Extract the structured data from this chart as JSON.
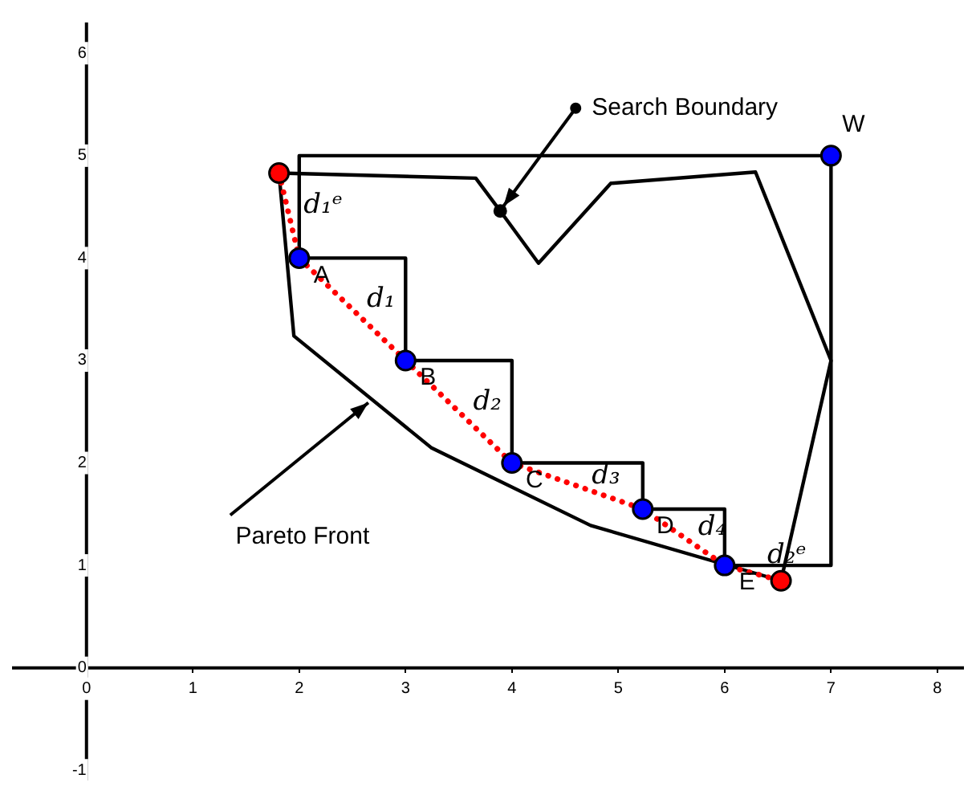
{
  "chart_data": {
    "type": "line",
    "xlim": [
      -0.7,
      8.25
    ],
    "ylim": [
      -1.1,
      6.3
    ],
    "xticks": [
      0,
      1,
      2,
      3,
      4,
      5,
      6,
      7,
      8
    ],
    "yticks": [
      -1,
      0,
      1,
      2,
      3,
      4,
      5,
      6
    ],
    "grid": false,
    "legend": false,
    "series": [
      {
        "color": "#000000",
        "marker": "none",
        "line_style": "solid",
        "x": [
          1.81,
          3.66,
          3.89,
          4.25,
          4.93,
          6.29,
          7,
          6.53
        ],
        "values": [
          4.83,
          4.78,
          4.46,
          3.95,
          4.73,
          4.84,
          3,
          0.85
        ]
      },
      {
        "color": "#000000",
        "marker": "none",
        "line_style": "solid",
        "x": [
          2,
          2,
          7,
          7,
          6
        ],
        "values": [
          4,
          5,
          5,
          1,
          1
        ]
      },
      {
        "color": "#000000",
        "marker": "none",
        "line_style": "solid",
        "x": [
          2,
          3,
          3,
          4,
          4,
          5.23,
          5.23,
          6,
          6
        ],
        "values": [
          4,
          4,
          3,
          3,
          2,
          2,
          1.55,
          1.55,
          1
        ]
      },
      {
        "color": "#000000",
        "marker": "none",
        "line_style": "solid",
        "x": [
          1.81,
          1.95,
          3.24,
          4.74,
          6.53
        ],
        "values": [
          4.83,
          3.24,
          2.15,
          1.39,
          0.85
        ]
      },
      {
        "color": "#ff0000",
        "marker": "none",
        "line_style": "dotted",
        "x": [
          1.81,
          2,
          3,
          4,
          5.23,
          6,
          6.53
        ],
        "values": [
          4.83,
          4,
          3,
          2,
          1.55,
          1,
          0.85
        ]
      },
      {
        "type": "scatter",
        "color": "#0000ff",
        "marker": "circle",
        "x": [
          2,
          3,
          4,
          5.23,
          6,
          7
        ],
        "values": [
          4,
          3,
          2,
          1.55,
          1,
          5
        ]
      },
      {
        "type": "scatter",
        "color": "#ff0000",
        "marker": "circle",
        "x": [
          1.81,
          6.53
        ],
        "values": [
          4.83,
          0.85
        ]
      },
      {
        "type": "scatter",
        "color": "#000000",
        "marker": "circle",
        "x": [
          3.89
        ],
        "values": [
          4.46
        ]
      }
    ],
    "annotations": [
      {
        "text": "A",
        "x": 2,
        "y": 4
      },
      {
        "text": "B",
        "x": 3,
        "y": 3
      },
      {
        "text": "C",
        "x": 4,
        "y": 2
      },
      {
        "text": "D",
        "x": 5.23,
        "y": 1.55
      },
      {
        "text": "E",
        "x": 6,
        "y": 1
      },
      {
        "text": "W",
        "x": 7,
        "y": 5
      },
      {
        "text": "d₁ᵉ",
        "x": 1.905,
        "y": 4.415
      },
      {
        "text": "d₁",
        "x": 2.5,
        "y": 3.5
      },
      {
        "text": "d₂",
        "x": 3.5,
        "y": 2.5
      },
      {
        "text": "d₃",
        "x": 4.615,
        "y": 1.775
      },
      {
        "text": "d₄",
        "x": 5.615,
        "y": 1.275
      },
      {
        "text": "d₂ᵉ",
        "x": 6.265,
        "y": 1
      },
      {
        "text": "Search Boundary",
        "x": 3.89,
        "y": 4.46
      },
      {
        "text": "Pareto Front",
        "x": 2.68,
        "y": 2.62
      }
    ]
  }
}
